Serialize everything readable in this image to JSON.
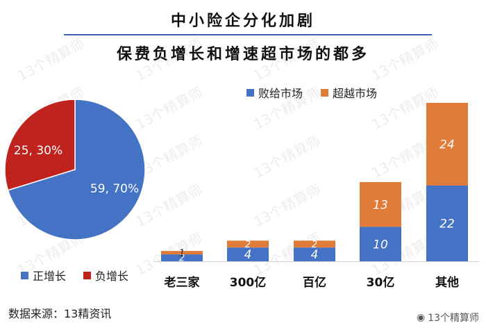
{
  "title_line1": "中小险企分化加剧",
  "title_line2": "保费负增长和增速超市场的都多",
  "watermark": "13个精算师",
  "source": "数据来源：13精资讯",
  "weibo_handle": "13个精算师",
  "colors": {
    "blue": "#4472c4",
    "orange": "#e07b39",
    "red": "#c0231d",
    "rule": "#3f63b8"
  },
  "chart_data": [
    {
      "type": "pie",
      "labels": [
        "正增长",
        "负增长"
      ],
      "values": [
        59,
        25
      ],
      "data_labels": [
        "59, 70%",
        "25, 30%"
      ],
      "colors": [
        "#4472c4",
        "#c0231d"
      ],
      "legend_position": "bottom"
    },
    {
      "type": "bar",
      "stacked": true,
      "categories": [
        "老三家",
        "300亿",
        "百亿",
        "30亿",
        "其他"
      ],
      "series": [
        {
          "name": "败给市场",
          "values": [
            2,
            4,
            4,
            10,
            22
          ],
          "color": "#4472c4"
        },
        {
          "name": "超越市场",
          "values": [
            1,
            2,
            2,
            13,
            24
          ],
          "color": "#e07b39"
        }
      ],
      "ylim": [
        0,
        46
      ],
      "grid": false,
      "legend_position": "top"
    }
  ]
}
